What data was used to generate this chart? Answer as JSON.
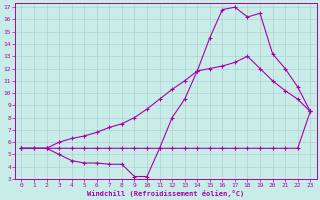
{
  "xlabel": "Windchill (Refroidissement éolien,°C)",
  "background_color": "#c8ede8",
  "grid_color": "#aacccc",
  "line_color": "#aa00aa",
  "xlim": [
    -0.5,
    23.5
  ],
  "ylim": [
    3,
    17.3
  ],
  "xticks": [
    0,
    1,
    2,
    3,
    4,
    5,
    6,
    7,
    8,
    9,
    10,
    11,
    12,
    13,
    14,
    15,
    16,
    17,
    18,
    19,
    20,
    21,
    22,
    23
  ],
  "yticks": [
    3,
    4,
    5,
    6,
    7,
    8,
    9,
    10,
    11,
    12,
    13,
    14,
    15,
    16,
    17
  ],
  "curve1_x": [
    0,
    1,
    2,
    3,
    4,
    5,
    6,
    7,
    8,
    9,
    10,
    11,
    12,
    13,
    14,
    15,
    16,
    17,
    18,
    19,
    20,
    21,
    22,
    23
  ],
  "curve1_y": [
    5.5,
    5.5,
    5.5,
    5.5,
    5.5,
    5.5,
    5.5,
    5.5,
    5.5,
    5.5,
    5.5,
    5.5,
    5.5,
    5.5,
    5.5,
    5.5,
    5.5,
    5.5,
    5.5,
    5.5,
    5.5,
    5.5,
    5.5,
    8.5
  ],
  "curve2_x": [
    0,
    1,
    2,
    3,
    4,
    5,
    6,
    7,
    8,
    9,
    10,
    11,
    12,
    13,
    14,
    15,
    16,
    17,
    18,
    19,
    20,
    21,
    22,
    23
  ],
  "curve2_y": [
    5.5,
    5.5,
    5.5,
    6.0,
    6.3,
    6.5,
    6.8,
    7.2,
    7.5,
    8.0,
    8.7,
    9.5,
    10.3,
    11.0,
    11.8,
    12.0,
    12.2,
    12.5,
    13.0,
    12.0,
    11.0,
    10.2,
    9.5,
    8.5
  ],
  "curve3_x": [
    0,
    2,
    3,
    4,
    5,
    6,
    7,
    8,
    9,
    10,
    11,
    12,
    13,
    14,
    15,
    16,
    17,
    18,
    19,
    20,
    21,
    22,
    23
  ],
  "curve3_y": [
    5.5,
    5.5,
    5.0,
    4.5,
    4.3,
    4.3,
    4.2,
    4.2,
    3.2,
    3.2,
    5.5,
    8.0,
    9.5,
    11.8,
    14.5,
    16.8,
    17.0,
    16.2,
    16.5,
    13.2,
    12.0,
    10.5,
    8.5
  ]
}
